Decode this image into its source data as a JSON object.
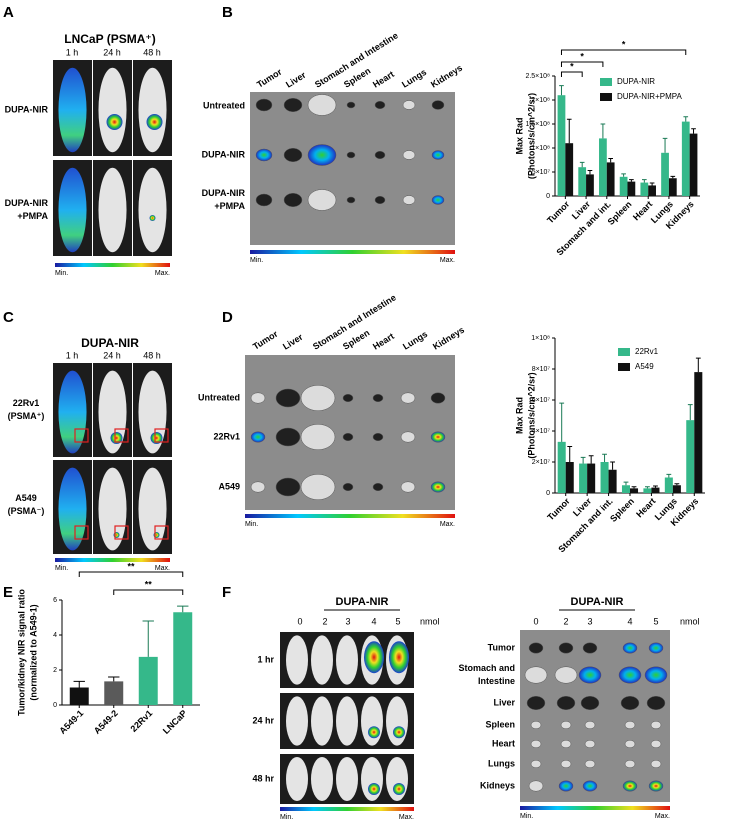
{
  "panels": {
    "scale": {
      "min": "Min.",
      "max": "Max."
    },
    "A": {
      "letter": "A",
      "title": "LNCaP (PSMA⁺)",
      "columns": [
        "1 h",
        "24 h",
        "48 h"
      ],
      "rows": [
        [
          "DUPA-NIR"
        ],
        [
          "DUPA-NIR",
          "+PMPA"
        ]
      ]
    },
    "B": {
      "letter": "B",
      "organs": [
        "Tumor",
        "Liver",
        "Stomach and Intestine",
        "Spleen",
        "Heart",
        "Lungs",
        "Kidneys"
      ],
      "rows": [
        [
          "Untreated"
        ],
        [
          "DUPA-NIR"
        ],
        [
          "DUPA-NIR",
          "+PMPA"
        ]
      ]
    },
    "C": {
      "letter": "C",
      "title": "DUPA-NIR",
      "columns": [
        "1 h",
        "24 h",
        "48 h"
      ],
      "rows": [
        [
          "22Rv1",
          "(PSMA⁺)"
        ],
        [
          "A549",
          "(PSMA⁻)"
        ]
      ]
    },
    "D": {
      "letter": "D",
      "organs": [
        "Tumor",
        "Liver",
        "Stomach and Intestine",
        "Spleen",
        "Heart",
        "Lungs",
        "Kidneys"
      ],
      "rows": [
        [
          "Untreated"
        ],
        [
          "22Rv1"
        ],
        [
          "A549"
        ]
      ]
    },
    "E": {
      "letter": "E"
    },
    "F": {
      "letter": "F",
      "left": {
        "title": "DUPA-NIR",
        "doses": [
          "0",
          "2",
          "3",
          "4",
          "5"
        ],
        "unit": "nmol",
        "rows": [
          [
            "1 hr"
          ],
          [
            "24 hr"
          ],
          [
            "48 hr"
          ]
        ]
      },
      "right": {
        "title": "DUPA-NIR",
        "doses": [
          "0",
          "2",
          "3",
          "4",
          "5"
        ],
        "unit": "nmol",
        "rows": [
          [
            "Tumor"
          ],
          [
            "Stomach and",
            "Intestine"
          ],
          [
            "Liver"
          ],
          [
            "Spleen"
          ],
          [
            "Heart"
          ],
          [
            "Lungs"
          ],
          [
            "Kidneys"
          ]
        ]
      }
    }
  },
  "chart_data": [
    {
      "type": "bar",
      "ylabel": [
        "Max Rad",
        "(Photons/s/cm^2/sr)"
      ],
      "categories": [
        "Tumor",
        "Liver",
        "Stomach and int.",
        "Spleen",
        "Heart",
        "Lungs",
        "Kidneys"
      ],
      "series": [
        {
          "name": "DUPA-NIR",
          "color": "#35b88a",
          "values": [
            210000000,
            60000000,
            120000000,
            40000000,
            28000000,
            90000000,
            155000000
          ],
          "errors": [
            20000000,
            10000000,
            30000000,
            6000000,
            6000000,
            30000000,
            10000000
          ]
        },
        {
          "name": "DUPA-NIR+PMPA",
          "color": "#111111",
          "values": [
            110000000,
            45000000,
            70000000,
            30000000,
            22000000,
            37000000,
            130000000
          ],
          "errors": [
            50000000,
            8000000,
            8000000,
            4000000,
            5000000,
            4000000,
            10000000
          ]
        }
      ],
      "ylim": [
        0,
        250000000
      ],
      "yticks": [
        0,
        {
          "value": 50000000,
          "label": "5×10⁷"
        },
        {
          "value": 100000000,
          "label": "1×10⁸"
        },
        {
          "value": 150000000,
          "label": "1.5×10⁸"
        },
        {
          "value": 200000000,
          "label": "2×10⁸"
        },
        {
          "value": 250000000,
          "label": "2.5×10⁸"
        }
      ],
      "legend": "upper right",
      "annotations": [
        "*",
        "*",
        "*"
      ]
    },
    {
      "type": "bar",
      "ylabel": [
        "Max Rad",
        "(Photons/s/cm^2/sr)"
      ],
      "categories": [
        "Tumor",
        "Liver",
        "Stomach and int.",
        "Spleen",
        "Heart",
        "Lungs",
        "Kidneys"
      ],
      "series": [
        {
          "name": "22Rv1",
          "color": "#35b88a",
          "values": [
            33000000,
            19000000,
            20000000,
            5000000,
            3000000,
            10000000,
            47000000
          ],
          "errors": [
            25000000,
            4000000,
            5000000,
            2000000,
            1000000,
            2000000,
            10000000
          ]
        },
        {
          "name": "A549",
          "color": "#111111",
          "values": [
            20000000,
            19000000,
            15000000,
            3000000,
            3500000,
            5000000,
            78000000
          ],
          "errors": [
            10000000,
            5000000,
            5000000,
            1000000,
            1000000,
            1000000,
            9000000
          ]
        }
      ],
      "ylim": [
        0,
        100000000
      ],
      "yticks": [
        0,
        {
          "value": 20000000,
          "label": "2×10⁷"
        },
        {
          "value": 40000000,
          "label": "4×10⁷"
        },
        {
          "value": 60000000,
          "label": "6×10⁷"
        },
        {
          "value": 80000000,
          "label": "8×10⁷"
        },
        {
          "value": 100000000,
          "label": "1×10⁸"
        }
      ],
      "legend": "upper right"
    },
    {
      "type": "bar",
      "ylabel": [
        "Tumor/kidney NIR signal ratio",
        "(normalized to A549-1)"
      ],
      "categories": [
        "A549-1",
        "A549-2",
        "22Rv1",
        "LNCaP"
      ],
      "values": [
        1.0,
        1.35,
        2.75,
        5.3
      ],
      "errors": [
        0.35,
        0.25,
        2.05,
        0.35
      ],
      "colors": [
        "#111111",
        "#5a5a5a",
        "#35b88a",
        "#35b88a"
      ],
      "ylim": [
        0,
        6
      ],
      "yticks": [
        0,
        2,
        4,
        6
      ],
      "annotations": [
        "**",
        "**"
      ]
    }
  ]
}
